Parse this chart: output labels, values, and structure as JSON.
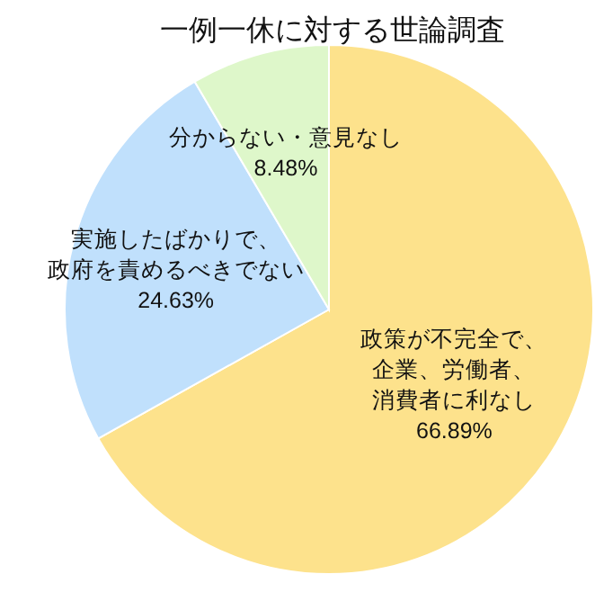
{
  "chart_data": {
    "type": "pie",
    "title": "一例一休に対する世論調査",
    "categories": [
      "政策が不完全で、企業、労働者、消費者に利なし",
      "実施したばかりで、政府を責めるべきでない",
      "分からない・意見なし"
    ],
    "values": [
      66.89,
      24.63,
      8.48
    ],
    "colors": [
      "#fde28c",
      "#c0e0fc",
      "#def7ca"
    ],
    "value_labels": [
      "66.89%",
      "24.63%",
      "8.48%"
    ]
  }
}
